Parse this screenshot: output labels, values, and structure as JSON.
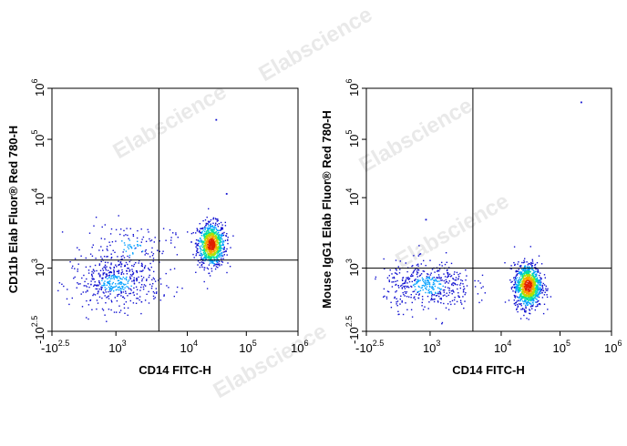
{
  "watermark": "Elabscience",
  "watermark_mark": "®",
  "colors": {
    "frame": "#000000",
    "gate": "#000000",
    "density_scale": [
      "#1010d0",
      "#00a0ff",
      "#00e0a0",
      "#b0e000",
      "#ffa000",
      "#e02000"
    ]
  },
  "chart_data": [
    {
      "type": "scatter",
      "xlabel": "CD14 FITC-H",
      "ylabel": "CD11b Elab Fluor® Red 780-H",
      "x_scale": "biexponential",
      "y_scale": "biexponential",
      "xlim": [
        "-10^2.5",
        "10^6"
      ],
      "ylim": [
        "-10^2.5",
        "10^6"
      ],
      "x_ticks": [
        {
          "base": "-10",
          "exp": "2.5"
        },
        {
          "base": "10",
          "exp": "3"
        },
        {
          "base": "10",
          "exp": "4"
        },
        {
          "base": "10",
          "exp": "5"
        },
        {
          "base": "10",
          "exp": "6"
        }
      ],
      "y_ticks": [
        {
          "base": "-10",
          "exp": "2.5"
        },
        {
          "base": "10",
          "exp": "3"
        },
        {
          "base": "10",
          "exp": "4"
        },
        {
          "base": "10",
          "exp": "5"
        },
        {
          "base": "10",
          "exp": "6"
        }
      ],
      "gate": {
        "x": 4000,
        "y": 1300
      },
      "populations": [
        {
          "name": "CD14+ CD11b+ cluster",
          "x_center": 25000,
          "y_center": 2200,
          "count": 900
        },
        {
          "name": "CD14- low scatter",
          "x_center": 1000,
          "y_center": 400,
          "count": 450
        },
        {
          "name": "CD14- CD11b mid",
          "x_center": 1500,
          "y_center": 2000,
          "count": 150
        }
      ],
      "outliers": [
        {
          "x": 30000,
          "y": 250000
        },
        {
          "x": 45000,
          "y": 12000
        }
      ]
    },
    {
      "type": "scatter",
      "xlabel": "CD14 FITC-H",
      "ylabel": "Mouse IgG1 Elab Fluor® Red 780-H",
      "x_scale": "biexponential",
      "y_scale": "biexponential",
      "xlim": [
        "-10^2.5",
        "10^6"
      ],
      "ylim": [
        "-10^2.5",
        "10^6"
      ],
      "x_ticks": [
        {
          "base": "-10",
          "exp": "2.5"
        },
        {
          "base": "10",
          "exp": "3"
        },
        {
          "base": "10",
          "exp": "4"
        },
        {
          "base": "10",
          "exp": "5"
        },
        {
          "base": "10",
          "exp": "6"
        }
      ],
      "y_ticks": [
        {
          "base": "-10",
          "exp": "2.5"
        },
        {
          "base": "10",
          "exp": "3"
        },
        {
          "base": "10",
          "exp": "4"
        },
        {
          "base": "10",
          "exp": "5"
        },
        {
          "base": "10",
          "exp": "6"
        }
      ],
      "gate": {
        "x": 4000,
        "y": 1000
      },
      "populations": [
        {
          "name": "CD14+ isotype cluster",
          "x_center": 28000,
          "y_center": 300,
          "count": 1000
        },
        {
          "name": "CD14- isotype low",
          "x_center": 900,
          "y_center": 300,
          "count": 450
        }
      ],
      "outliers": [
        {
          "x": 250000,
          "y": 550000
        },
        {
          "x": 800,
          "y": 5000
        }
      ]
    }
  ]
}
